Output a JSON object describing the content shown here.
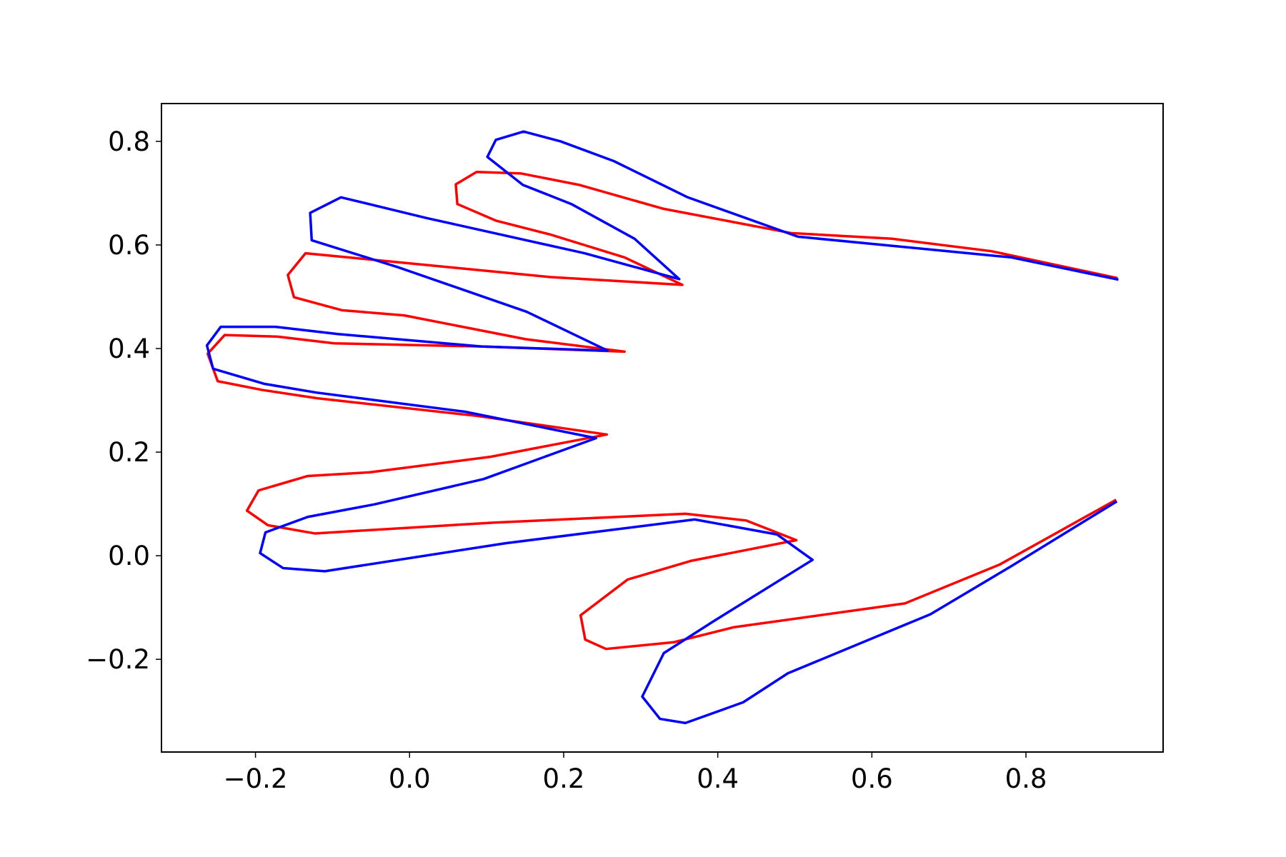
{
  "chart_data": {
    "type": "line",
    "xlim": [
      -0.322,
      0.978
    ],
    "ylim": [
      -0.379,
      0.873
    ],
    "xticks": [
      {
        "value": -0.2,
        "label": "−0.2"
      },
      {
        "value": 0,
        "label": "0.0"
      },
      0.2,
      0.4,
      0.6,
      0.8
    ],
    "yticks": [
      {
        "value": -0.2,
        "label": "−0.2"
      },
      {
        "value": 0,
        "label": "0.0"
      },
      0.2,
      0.4,
      0.6,
      0.8
    ],
    "grid": false,
    "series": [
      {
        "color": "#ff0000",
        "x": [
          0.919,
          0.755,
          0.626,
          0.495,
          0.329,
          0.22,
          0.145,
          0.087,
          0.06,
          0.062,
          0.112,
          0.183,
          0.279,
          0.354,
          0.183,
          -0.135,
          -0.158,
          -0.15,
          -0.088,
          -0.007,
          0.151,
          0.279,
          0.093,
          -0.098,
          -0.171,
          -0.24,
          -0.262,
          -0.249,
          -0.191,
          -0.12,
          0.087,
          0.256,
          0.105,
          -0.052,
          -0.132,
          -0.196,
          -0.211,
          -0.184,
          -0.123,
          0.11,
          0.358,
          0.437,
          0.502,
          0.365,
          0.283,
          0.222,
          0.228,
          0.255,
          0.343,
          0.421,
          0.643,
          0.766,
          0.917
        ],
        "values": [
          0.536,
          0.588,
          0.612,
          0.623,
          0.67,
          0.716,
          0.738,
          0.741,
          0.717,
          0.679,
          0.647,
          0.62,
          0.576,
          0.523,
          0.538,
          0.584,
          0.542,
          0.499,
          0.474,
          0.464,
          0.418,
          0.394,
          0.404,
          0.41,
          0.423,
          0.426,
          0.39,
          0.337,
          0.32,
          0.304,
          0.27,
          0.234,
          0.191,
          0.161,
          0.154,
          0.126,
          0.087,
          0.059,
          0.043,
          0.064,
          0.081,
          0.068,
          0.03,
          -0.01,
          -0.046,
          -0.115,
          -0.162,
          -0.18,
          -0.167,
          -0.138,
          -0.092,
          -0.017,
          0.108
        ]
      },
      {
        "color": "#0000ff",
        "x": [
          0.92,
          0.781,
          0.504,
          0.361,
          0.265,
          0.196,
          0.148,
          0.112,
          0.101,
          0.147,
          0.21,
          0.292,
          0.35,
          0.227,
          0.022,
          -0.089,
          -0.129,
          -0.127,
          -0.015,
          0.152,
          0.257,
          0.093,
          -0.093,
          -0.174,
          -0.245,
          -0.263,
          -0.255,
          -0.189,
          -0.121,
          0.072,
          0.242,
          0.096,
          -0.046,
          -0.132,
          -0.187,
          -0.194,
          -0.164,
          -0.11,
          0.124,
          0.37,
          0.477,
          0.523,
          0.394,
          0.33,
          0.302,
          0.325,
          0.358,
          0.433,
          0.491,
          0.676,
          0.78,
          0.918
        ],
        "values": [
          0.533,
          0.576,
          0.616,
          0.692,
          0.762,
          0.8,
          0.819,
          0.803,
          0.77,
          0.716,
          0.679,
          0.612,
          0.534,
          0.584,
          0.652,
          0.692,
          0.662,
          0.609,
          0.557,
          0.471,
          0.396,
          0.404,
          0.428,
          0.442,
          0.442,
          0.406,
          0.361,
          0.332,
          0.315,
          0.278,
          0.227,
          0.148,
          0.099,
          0.075,
          0.045,
          0.005,
          -0.024,
          -0.03,
          0.024,
          0.07,
          0.041,
          -0.008,
          -0.127,
          -0.188,
          -0.272,
          -0.315,
          -0.323,
          -0.283,
          -0.227,
          -0.113,
          -0.021,
          0.105
        ]
      }
    ]
  }
}
